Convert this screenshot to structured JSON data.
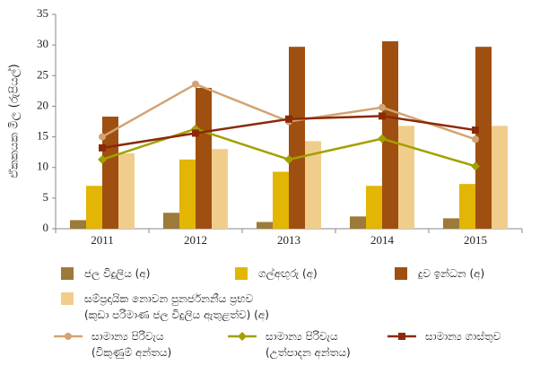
{
  "chart_data": {
    "type": "bar",
    "y_label": "ඒකකයක මිල (රුපියල්)",
    "categories": [
      "2011",
      "2012",
      "2013",
      "2014",
      "2015"
    ],
    "ylim": [
      0,
      35
    ],
    "yticks": [
      0,
      5,
      10,
      15,
      20,
      25,
      30,
      35
    ],
    "series": [
      {
        "name": "ජල විදුලිය (අ)",
        "type": "bar",
        "color": "#9c7b3a",
        "values": [
          1.4,
          2.6,
          1.1,
          2.0,
          1.7
        ]
      },
      {
        "name": "ගල්අඟුරු (අ)",
        "type": "bar",
        "color": "#e3b505",
        "values": [
          7.0,
          11.3,
          9.3,
          7.0,
          7.3
        ]
      },
      {
        "name": "දුව ඉන්ධන (අ)",
        "type": "bar",
        "color": "#9f4f10",
        "values": [
          18.3,
          23.0,
          29.7,
          30.6,
          29.7
        ]
      },
      {
        "name": "සම්ප්‍රදායික නොවන පුනර්ජනනීය ප්‍රභව\n(කුඩා පරිමාණ ජල විදුලිය ඇතුළත්ව) (අ)",
        "type": "bar",
        "color": "#f1cd8c",
        "values": [
          12.3,
          13.0,
          14.3,
          16.8,
          16.8
        ]
      },
      {
        "name": "සාමාන්‍ය පිරිවැය\n(විකුණුම් අන්තය)",
        "type": "line",
        "marker": "circle",
        "color": "#d4a373",
        "values": [
          15.0,
          23.6,
          17.5,
          19.8,
          14.6
        ]
      },
      {
        "name": "සාමාන්‍ය පිරිවැය\n(උත්පාදන අන්තය)",
        "type": "line",
        "marker": "diamond",
        "color": "#a2a000",
        "values": [
          11.3,
          16.3,
          11.3,
          14.7,
          10.2
        ]
      },
      {
        "name": "සාමාන්‍ය ගාස්තුව",
        "type": "line",
        "marker": "square",
        "color": "#8b2a06",
        "values": [
          13.2,
          15.6,
          17.9,
          18.4,
          16.1
        ]
      }
    ]
  }
}
